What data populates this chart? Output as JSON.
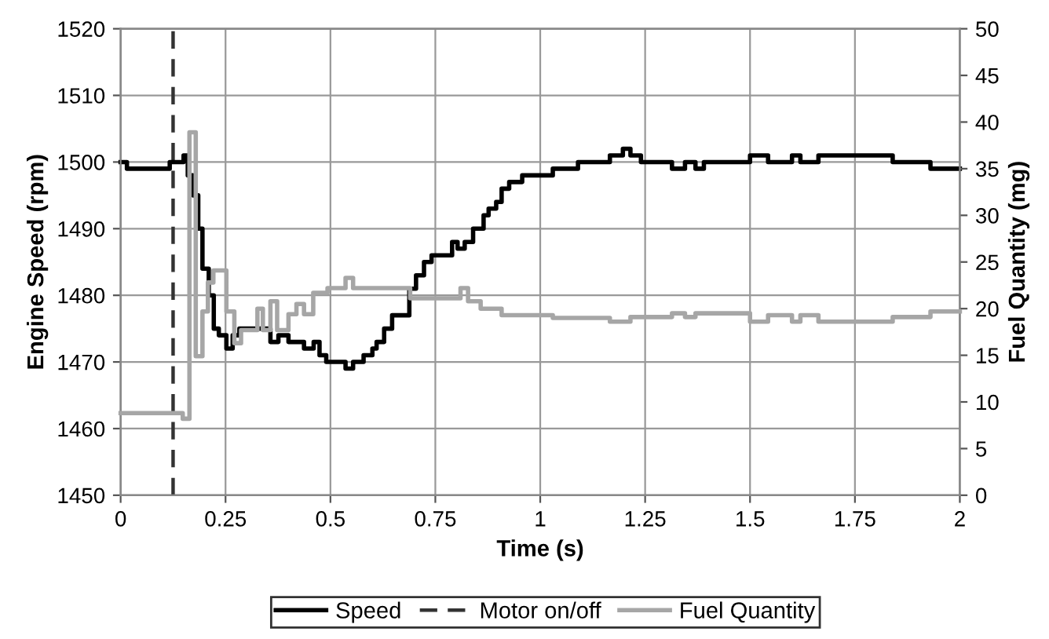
{
  "chart_data": {
    "type": "step",
    "xlabel": "Time (s)",
    "ylabel": "Engine Speed (rpm)",
    "y2label": "Fuel Quantity (mg)",
    "xlim": [
      0,
      2
    ],
    "xticks": [
      0,
      0.25,
      0.5,
      0.75,
      1,
      1.25,
      1.5,
      1.75,
      2
    ],
    "ylim": [
      1450,
      1520
    ],
    "yticks": [
      1450,
      1460,
      1470,
      1480,
      1490,
      1500,
      1510,
      1520
    ],
    "y2lim": [
      0,
      50
    ],
    "y2ticks": [
      0,
      5,
      10,
      15,
      20,
      25,
      30,
      35,
      40,
      45,
      50
    ],
    "grid": true,
    "ref_lines": [
      {
        "axis": "x",
        "value": 0.125,
        "label": "Motor on/off",
        "color": "#333333",
        "line_style": "dashed"
      }
    ],
    "legend": "bottom",
    "marker": "none",
    "series": [
      {
        "name": "Speed",
        "color": "#000000",
        "line_style": "solid",
        "x": [
          0,
          0.015,
          0.117,
          0.15,
          0.16,
          0.172,
          0.185,
          0.195,
          0.21,
          0.222,
          0.234,
          0.252,
          0.267,
          0.283,
          0.3,
          0.357,
          0.376,
          0.4,
          0.437,
          0.46,
          0.474,
          0.49,
          0.536,
          0.554,
          0.579,
          0.6,
          0.61,
          0.628,
          0.647,
          0.688,
          0.704,
          0.723,
          0.741,
          0.79,
          0.803,
          0.82,
          0.84,
          0.865,
          0.877,
          0.895,
          0.908,
          0.926,
          0.957,
          1.03,
          1.09,
          1.166,
          1.197,
          1.215,
          1.24,
          1.314,
          1.345,
          1.37,
          1.39,
          1.5,
          1.543,
          1.6,
          1.62,
          1.663,
          1.84,
          1.93,
          2
        ],
        "values": [
          1500,
          1499,
          1500,
          1501,
          1498,
          1495,
          1490,
          1484,
          1480,
          1475,
          1474,
          1472,
          1474,
          1475,
          1475,
          1473,
          1474,
          1473,
          1472,
          1473,
          1471,
          1470,
          1469,
          1470,
          1471,
          1472,
          1473,
          1475,
          1477,
          1481,
          1483,
          1485,
          1486,
          1488,
          1487,
          1488,
          1490,
          1492,
          1493,
          1494,
          1496,
          1497,
          1498,
          1499,
          1500,
          1501,
          1502,
          1501,
          1500,
          1499,
          1500,
          1499,
          1500,
          1501,
          1500,
          1501,
          1500,
          1501,
          1500,
          1499,
          1499
        ]
      },
      {
        "name": "Fuel Quantity",
        "color": "#a6a6a6",
        "line_style": "solid",
        "axis": "y2",
        "x": [
          0,
          0.148,
          0.164,
          0.179,
          0.195,
          0.208,
          0.221,
          0.252,
          0.271,
          0.287,
          0.326,
          0.339,
          0.357,
          0.373,
          0.4,
          0.419,
          0.437,
          0.459,
          0.493,
          0.536,
          0.554,
          0.69,
          0.81,
          0.828,
          0.858,
          0.908,
          1.03,
          1.166,
          1.215,
          1.314,
          1.345,
          1.37,
          1.5,
          1.543,
          1.6,
          1.62,
          1.663,
          1.84,
          1.93,
          2
        ],
        "values": [
          8.8,
          8.2,
          38.9,
          14.9,
          19.7,
          22.8,
          24.1,
          19.7,
          16.3,
          17.7,
          20,
          17.7,
          20.8,
          17.7,
          19.4,
          20.5,
          19.4,
          21.7,
          22.2,
          23.3,
          22.2,
          21.1,
          22.2,
          20.8,
          20,
          19.3,
          19,
          18.6,
          19.1,
          19.5,
          19.1,
          19.5,
          18.6,
          19.3,
          18.6,
          19.3,
          18.6,
          19.1,
          19.7,
          19.7
        ]
      }
    ]
  }
}
